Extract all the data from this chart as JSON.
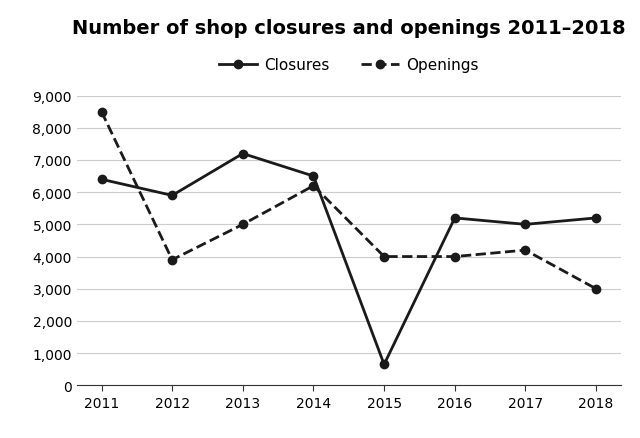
{
  "title": "Number of shop closures and openings 2011–2018",
  "years": [
    2011,
    2012,
    2013,
    2014,
    2015,
    2016,
    2017,
    2018
  ],
  "closures": [
    6400,
    5900,
    7200,
    6500,
    650,
    5200,
    5000,
    5200
  ],
  "openings": [
    8500,
    3900,
    5000,
    6200,
    4000,
    4000,
    4200,
    3000
  ],
  "ylim": [
    0,
    9000
  ],
  "yticks": [
    0,
    1000,
    2000,
    3000,
    4000,
    5000,
    6000,
    7000,
    8000,
    9000
  ],
  "line_color": "#1a1a1a",
  "closures_label": "Closures",
  "openings_label": "Openings",
  "title_fontsize": 14,
  "legend_fontsize": 11,
  "tick_fontsize": 10,
  "figsize": [
    6.4,
    4.39
  ],
  "dpi": 100
}
